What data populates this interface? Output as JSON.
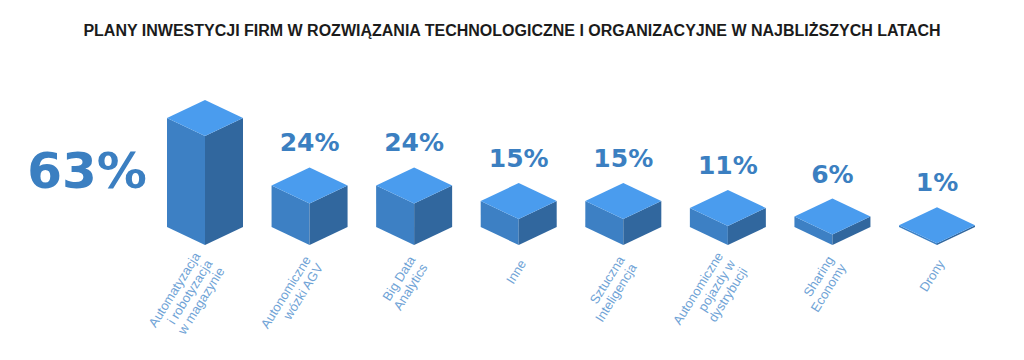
{
  "chart_data": {
    "type": "bar",
    "title": "PLANY INWESTYCJI FIRM W ROZWIĄZANIA TECHNOLOGICZNE I ORGANIZACYJNE W NAJBLIŻSZYCH LATACH",
    "categories": [
      "Automatyzacja i robotyzacja w magazynie",
      "Autonomiczne wózki AGV",
      "Big Data Analytics",
      "Inne",
      "Sztuczna Inteligencja",
      "Autonomiczne pojazdy w dystrybucji",
      "Sharing Economy",
      "Drony"
    ],
    "values": [
      63,
      24,
      24,
      15,
      15,
      11,
      6,
      1
    ],
    "value_labels": [
      "63%",
      "24%",
      "24%",
      "15%",
      "15%",
      "11%",
      "6%",
      "1%"
    ],
    "color": "#3d80c4",
    "ylim": [
      0,
      63
    ],
    "data_labels": true,
    "tick_labels": false,
    "grid": false
  }
}
